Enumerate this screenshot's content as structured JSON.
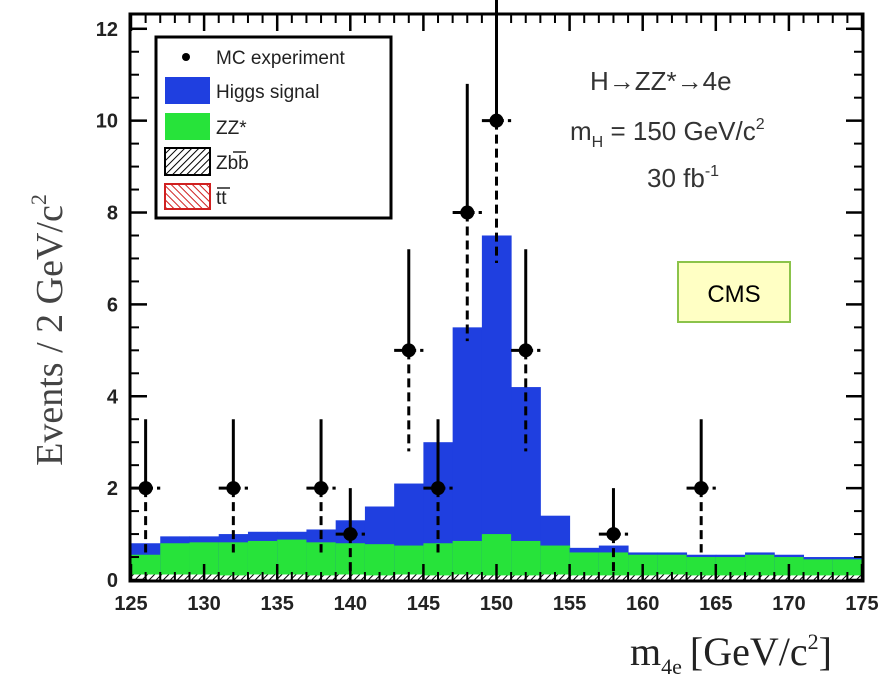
{
  "chart_data": {
    "type": "bar",
    "xlabel": "m",
    "xlabel_sub": "4e",
    "xlabel_unit": "[GeV/c",
    "xlabel_unit_sup": "2",
    "xlabel_unit_end": "]",
    "ylabel": "Events / 2 GeV/c",
    "ylabel_sup": "2",
    "xlim": [
      125,
      175
    ],
    "ylim": [
      0,
      12.3
    ],
    "xticks": [
      125,
      130,
      135,
      140,
      145,
      150,
      155,
      160,
      165,
      170,
      175
    ],
    "yticks": [
      0,
      2,
      4,
      6,
      8,
      10,
      12
    ],
    "bin_width": 2,
    "bin_edges": [
      125,
      127,
      129,
      131,
      133,
      135,
      137,
      139,
      141,
      143,
      145,
      147,
      149,
      151,
      153,
      155,
      157,
      159,
      161,
      163,
      165,
      167,
      169,
      171,
      173,
      175
    ],
    "stack_total": [
      0.8,
      0.95,
      0.95,
      1.0,
      1.05,
      1.05,
      1.1,
      1.3,
      1.6,
      2.1,
      3.0,
      5.5,
      7.5,
      4.2,
      1.4,
      0.7,
      0.75,
      0.6,
      0.6,
      0.55,
      0.55,
      0.6,
      0.55,
      0.5,
      0.5
    ],
    "zz_background": [
      0.55,
      0.8,
      0.82,
      0.82,
      0.85,
      0.88,
      0.82,
      0.8,
      0.78,
      0.75,
      0.8,
      0.85,
      1.0,
      0.85,
      0.75,
      0.6,
      0.6,
      0.55,
      0.55,
      0.5,
      0.5,
      0.55,
      0.5,
      0.45,
      0.45
    ],
    "zbb_background": [
      0.12,
      0.12,
      0.12,
      0.1,
      0.12,
      0.12,
      0.1,
      0.12,
      0.1,
      0.12,
      0.1,
      0.12,
      0.1,
      0.1,
      0.12,
      0.1,
      0.1,
      0.1,
      0.12,
      0.1,
      0.1,
      0.1,
      0.1,
      0.1,
      0.1
    ],
    "data_points": [
      {
        "x": 126,
        "y": 2,
        "err_lo": 1.4,
        "err_hi": 1.5
      },
      {
        "x": 132,
        "y": 2,
        "err_lo": 1.4,
        "err_hi": 1.5
      },
      {
        "x": 138,
        "y": 2,
        "err_lo": 1.4,
        "err_hi": 1.5
      },
      {
        "x": 140,
        "y": 1,
        "err_lo": 0.9,
        "err_hi": 1.0
      },
      {
        "x": 144,
        "y": 5,
        "err_lo": 2.2,
        "err_hi": 2.2
      },
      {
        "x": 146,
        "y": 2,
        "err_lo": 1.4,
        "err_hi": 1.5
      },
      {
        "x": 148,
        "y": 8,
        "err_lo": 2.8,
        "err_hi": 2.8
      },
      {
        "x": 150,
        "y": 10,
        "err_lo": 3.1,
        "err_hi": 3.5
      },
      {
        "x": 152,
        "y": 5,
        "err_lo": 2.2,
        "err_hi": 2.2
      },
      {
        "x": 158,
        "y": 1,
        "err_lo": 0.9,
        "err_hi": 1.0
      },
      {
        "x": 164,
        "y": 2,
        "err_lo": 1.4,
        "err_hi": 1.5
      }
    ],
    "legend": [
      {
        "label": "MC experiment",
        "kind": "marker"
      },
      {
        "label": "Higgs signal",
        "kind": "fill",
        "color": "#1f3fe0"
      },
      {
        "label": "ZZ*",
        "kind": "fill",
        "color": "#27e33a"
      },
      {
        "label": "Zbb",
        "kind": "hatch",
        "color": "#000000"
      },
      {
        "label": "tt",
        "kind": "hatch",
        "color": "#d02020"
      }
    ],
    "legend_position": "top-left",
    "annotations": {
      "process": "H→ZZ*→4e",
      "mass_label": "m",
      "mass_sub": "H",
      "mass_value": " = 150 GeV/c",
      "mass_sup": "2",
      "lumi": "30 fb",
      "lumi_sup": "-1",
      "badge": "CMS"
    },
    "colors": {
      "higgs": "#1f3fe0",
      "zz": "#27e33a",
      "tt": "#d02020",
      "badge_bg": "#ffffc4",
      "badge_border": "#8bc34a"
    },
    "grid": false
  }
}
